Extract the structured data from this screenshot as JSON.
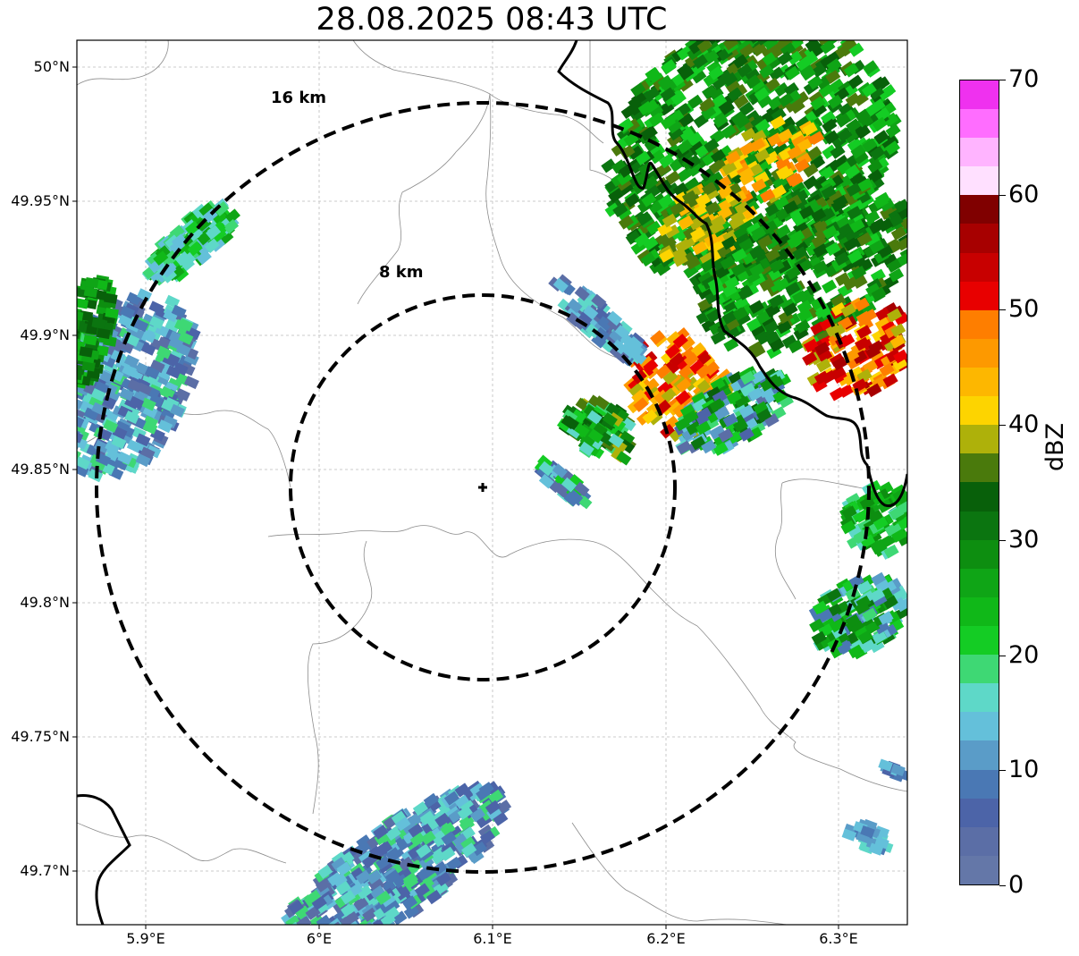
{
  "title": "28.08.2025 08:43 UTC",
  "map": {
    "lat_ticks": [
      "50°N",
      "49.95°N",
      "49.9°N",
      "49.85°N",
      "49.8°N",
      "49.75°N",
      "49.7°N"
    ],
    "lon_ticks": [
      "5.9°E",
      "6°E",
      "6.1°E",
      "6.2°E",
      "6.3°E"
    ],
    "range_rings": [
      {
        "label": "8 km",
        "radius_km": 8
      },
      {
        "label": "16 km",
        "radius_km": 16
      }
    ],
    "radar_site": {
      "lon": 6.095,
      "lat": 49.843
    },
    "extent": {
      "lon_min": 5.86,
      "lon_max": 6.34,
      "lat_min": 49.68,
      "lat_max": 50.01
    },
    "grid": true,
    "colors": {
      "border": "#000000",
      "admin_lines": "#888888",
      "rings": "#000000"
    }
  },
  "colorbar": {
    "label": "dBZ",
    "ticks": [
      "0",
      "10",
      "20",
      "30",
      "40",
      "50",
      "60",
      "70"
    ],
    "colors": [
      "#6477a8",
      "#5b6ea6",
      "#4c64a8",
      "#4a78b4",
      "#5a9cc8",
      "#64c0da",
      "#5ed8c8",
      "#3ed874",
      "#14cc24",
      "#10b818",
      "#0fa516",
      "#0d8e10",
      "#0b7510",
      "#08600a",
      "#4a7a0c",
      "#aeb10a",
      "#fdd400",
      "#fdb700",
      "#fd9900",
      "#fe7e00",
      "#e80000",
      "#c80000",
      "#a70000",
      "#800000",
      "#ffe0ff",
      "#ffb4ff",
      "#ff6dff",
      "#ef31ef"
    ]
  }
}
